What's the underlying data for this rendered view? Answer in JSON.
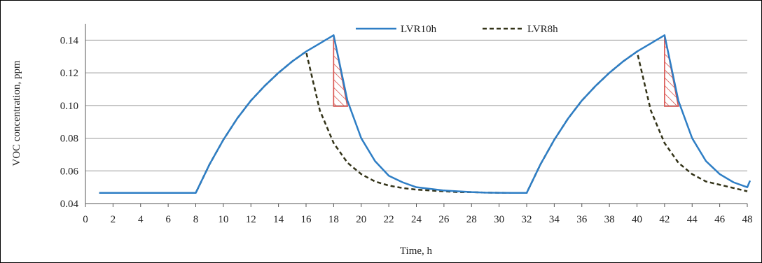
{
  "chart_data": {
    "type": "line",
    "title": "",
    "xlabel": "Time, h",
    "ylabel": "VOC concentration, ppm",
    "xlim": [
      0,
      48
    ],
    "ylim": [
      0.04,
      0.15
    ],
    "x_ticks": [
      0,
      2,
      4,
      6,
      8,
      10,
      12,
      14,
      16,
      18,
      20,
      22,
      24,
      26,
      28,
      30,
      32,
      34,
      36,
      38,
      40,
      42,
      44,
      46,
      48
    ],
    "y_ticks": [
      0.04,
      0.06,
      0.08,
      0.1,
      0.12,
      0.14
    ],
    "y_tick_labels": [
      "0.04",
      "0.06",
      "0.08",
      "0.10",
      "0.12",
      "0.14"
    ],
    "grid": "horizontal",
    "legend": "top-center",
    "series": [
      {
        "name": "LVR10h",
        "style": "solid",
        "color": "#2e7ec5",
        "x": [
          1,
          2,
          3,
          4,
          5,
          6,
          7,
          8,
          9,
          10,
          11,
          12,
          13,
          14,
          15,
          16,
          17,
          18,
          19,
          20,
          21,
          22,
          23,
          24,
          25,
          26,
          27,
          28,
          29,
          30,
          31,
          32,
          33,
          34,
          35,
          36,
          37,
          38,
          39,
          40,
          41,
          42,
          43,
          44,
          45,
          46,
          47,
          48,
          48.2
        ],
        "y": [
          0.0465,
          0.0465,
          0.0465,
          0.0465,
          0.0465,
          0.0465,
          0.0465,
          0.0465,
          0.064,
          0.079,
          0.092,
          0.103,
          0.112,
          0.12,
          0.127,
          0.133,
          0.138,
          0.143,
          0.103,
          0.08,
          0.066,
          0.057,
          0.053,
          0.05,
          0.049,
          0.048,
          0.0475,
          0.047,
          0.0467,
          0.0466,
          0.0465,
          0.0465,
          0.064,
          0.079,
          0.092,
          0.103,
          0.112,
          0.12,
          0.127,
          0.133,
          0.138,
          0.143,
          0.103,
          0.08,
          0.066,
          0.058,
          0.053,
          0.05,
          0.054
        ]
      },
      {
        "name": "LVR8h",
        "style": "dashed",
        "color": "#333318",
        "x": [
          1,
          2,
          3,
          4,
          5,
          6,
          7,
          8,
          9,
          10,
          11,
          12,
          13,
          14,
          15,
          16,
          17,
          18,
          19,
          20,
          21,
          22,
          23,
          24,
          25,
          26,
          27,
          28,
          29,
          30,
          31,
          32,
          33,
          34,
          35,
          36,
          37,
          38,
          39,
          40,
          41,
          42,
          43,
          44,
          45,
          46,
          47,
          48
        ],
        "y": [
          0.0465,
          0.0465,
          0.0465,
          0.0465,
          0.0465,
          0.0465,
          0.0465,
          0.0465,
          0.064,
          0.079,
          0.092,
          0.103,
          0.112,
          0.12,
          0.127,
          0.133,
          0.097,
          0.077,
          0.065,
          0.058,
          0.0535,
          0.051,
          0.0495,
          0.0485,
          0.048,
          0.0475,
          0.047,
          0.047,
          0.0467,
          0.0466,
          0.0465,
          0.0465,
          0.064,
          0.079,
          0.092,
          0.103,
          0.112,
          0.12,
          0.127,
          0.133,
          0.097,
          0.077,
          0.065,
          0.058,
          0.0535,
          0.0515,
          0.0495,
          0.0475
        ]
      }
    ],
    "shaded_regions": [
      {
        "x": [
          18,
          18,
          19
        ],
        "y": [
          0.143,
          0.0995,
          0.0995
        ],
        "color": "#d9534f",
        "fill": "hatched"
      },
      {
        "x": [
          42,
          42,
          43
        ],
        "y": [
          0.143,
          0.0995,
          0.0995
        ],
        "color": "#d9534f",
        "fill": "hatched"
      }
    ]
  }
}
